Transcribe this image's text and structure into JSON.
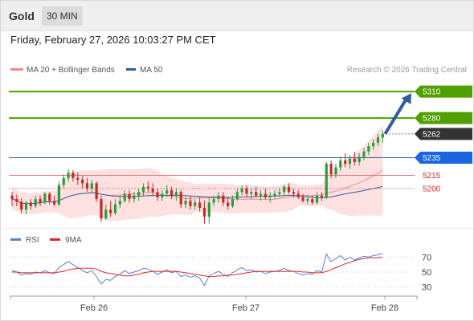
{
  "header": {
    "instrument": "Gold",
    "timeframe": "30 MIN",
    "datetime": "Friday, February 27, 2026 10:03:27 PM CET"
  },
  "legend": {
    "price": [
      {
        "label": "MA 20 + Bollinger Bands",
        "color": "#f08a8a"
      },
      {
        "label": "MA 50",
        "color": "#2d5d9c"
      }
    ],
    "copyright": "Research © 2026 Trading Central",
    "rsi": [
      {
        "label": "RSI",
        "color": "#5b7fd6"
      },
      {
        "label": "9MA",
        "color": "#d82b2b"
      }
    ]
  },
  "colors": {
    "up": "#2a9d3a",
    "down": "#c62828",
    "band_fill": "#fde1e1",
    "ma20": "#f08a8a",
    "ma50": "#2d5d9c",
    "resistance": "#4fa000",
    "pivot": "#1a66e0",
    "current": "#333333",
    "arrow": "#2f5d9e",
    "rsi": "#5b7fd6",
    "rsi_ma": "#d82b2b"
  },
  "chart_data": [
    {
      "type": "candlestick",
      "ylim": [
        5158,
        5322
      ],
      "x_ticks": [
        "Feb 26",
        "Feb 27",
        "Feb 28"
      ],
      "levels": [
        {
          "value": 5310,
          "label": "5310",
          "kind": "resistance"
        },
        {
          "value": 5280,
          "label": "5280",
          "kind": "resistance"
        },
        {
          "value": 5262,
          "label": "5262",
          "kind": "current"
        },
        {
          "value": 5235,
          "label": "5235",
          "kind": "pivot"
        },
        {
          "value": 5215,
          "label": "5215",
          "kind": "support"
        },
        {
          "value": 5200,
          "label": "5200",
          "kind": "support"
        }
      ],
      "target": {
        "from": 5262,
        "to": 5310
      },
      "ohlc": [
        [
          5192,
          5196,
          5180,
          5188
        ],
        [
          5188,
          5193,
          5180,
          5185
        ],
        [
          5185,
          5189,
          5172,
          5176
        ],
        [
          5176,
          5186,
          5171,
          5184
        ],
        [
          5184,
          5188,
          5176,
          5180
        ],
        [
          5180,
          5192,
          5178,
          5188
        ],
        [
          5188,
          5192,
          5180,
          5184
        ],
        [
          5184,
          5196,
          5182,
          5194
        ],
        [
          5194,
          5196,
          5182,
          5186
        ],
        [
          5186,
          5192,
          5180,
          5182
        ],
        [
          5182,
          5208,
          5180,
          5204
        ],
        [
          5204,
          5216,
          5200,
          5212
        ],
        [
          5212,
          5222,
          5208,
          5218
        ],
        [
          5218,
          5221,
          5208,
          5212
        ],
        [
          5212,
          5218,
          5204,
          5210
        ],
        [
          5210,
          5214,
          5200,
          5206
        ],
        [
          5206,
          5212,
          5196,
          5200
        ],
        [
          5200,
          5210,
          5196,
          5206
        ],
        [
          5206,
          5208,
          5185,
          5188
        ],
        [
          5188,
          5192,
          5162,
          5166
        ],
        [
          5166,
          5182,
          5164,
          5176
        ],
        [
          5176,
          5186,
          5168,
          5172
        ],
        [
          5172,
          5188,
          5170,
          5182
        ],
        [
          5182,
          5192,
          5178,
          5186
        ],
        [
          5186,
          5198,
          5184,
          5194
        ],
        [
          5194,
          5198,
          5184,
          5188
        ],
        [
          5188,
          5196,
          5184,
          5192
        ],
        [
          5192,
          5200,
          5186,
          5196
        ],
        [
          5196,
          5206,
          5192,
          5202
        ],
        [
          5202,
          5208,
          5196,
          5200
        ],
        [
          5200,
          5206,
          5192,
          5196
        ],
        [
          5196,
          5200,
          5186,
          5190
        ],
        [
          5190,
          5198,
          5186,
          5194
        ],
        [
          5194,
          5204,
          5190,
          5198
        ],
        [
          5198,
          5202,
          5188,
          5192
        ],
        [
          5192,
          5200,
          5186,
          5196
        ],
        [
          5196,
          5198,
          5178,
          5182
        ],
        [
          5182,
          5190,
          5178,
          5186
        ],
        [
          5186,
          5192,
          5176,
          5180
        ],
        [
          5180,
          5188,
          5176,
          5184
        ],
        [
          5184,
          5190,
          5174,
          5178
        ],
        [
          5178,
          5186,
          5160,
          5168
        ],
        [
          5168,
          5190,
          5160,
          5184
        ],
        [
          5184,
          5192,
          5180,
          5188
        ],
        [
          5188,
          5196,
          5184,
          5192
        ],
        [
          5192,
          5196,
          5180,
          5184
        ],
        [
          5184,
          5190,
          5176,
          5180
        ],
        [
          5180,
          5192,
          5178,
          5188
        ],
        [
          5188,
          5200,
          5186,
          5196
        ],
        [
          5196,
          5204,
          5192,
          5200
        ],
        [
          5200,
          5204,
          5190,
          5194
        ],
        [
          5194,
          5200,
          5188,
          5196
        ],
        [
          5196,
          5202,
          5190,
          5192
        ],
        [
          5192,
          5198,
          5186,
          5194
        ],
        [
          5194,
          5200,
          5188,
          5190
        ],
        [
          5190,
          5196,
          5184,
          5192
        ],
        [
          5192,
          5198,
          5188,
          5194
        ],
        [
          5194,
          5200,
          5190,
          5196
        ],
        [
          5196,
          5204,
          5192,
          5202
        ],
        [
          5202,
          5206,
          5194,
          5196
        ],
        [
          5196,
          5200,
          5190,
          5194
        ],
        [
          5194,
          5198,
          5188,
          5190
        ],
        [
          5190,
          5194,
          5184,
          5186
        ],
        [
          5186,
          5192,
          5182,
          5188
        ],
        [
          5188,
          5192,
          5182,
          5184
        ],
        [
          5184,
          5196,
          5182,
          5192
        ],
        [
          5192,
          5196,
          5186,
          5190
        ],
        [
          5190,
          5230,
          5188,
          5228
        ],
        [
          5228,
          5232,
          5212,
          5216
        ],
        [
          5216,
          5228,
          5212,
          5224
        ],
        [
          5224,
          5236,
          5220,
          5232
        ],
        [
          5232,
          5240,
          5224,
          5228
        ],
        [
          5228,
          5238,
          5222,
          5234
        ],
        [
          5234,
          5242,
          5226,
          5230
        ],
        [
          5230,
          5240,
          5226,
          5236
        ],
        [
          5236,
          5246,
          5232,
          5242
        ],
        [
          5242,
          5252,
          5238,
          5248
        ],
        [
          5248,
          5256,
          5244,
          5252
        ],
        [
          5252,
          5262,
          5248,
          5258
        ],
        [
          5258,
          5266,
          5252,
          5262
        ]
      ]
    },
    {
      "type": "line",
      "name": "RSI",
      "ylim": [
        20,
        80
      ],
      "y_ticks": [
        70,
        50,
        30
      ],
      "series": [
        {
          "name": "RSI",
          "values": [
            52,
            50,
            46,
            48,
            47,
            50,
            49,
            52,
            49,
            48,
            56,
            60,
            64,
            60,
            56,
            52,
            49,
            52,
            44,
            34,
            40,
            39,
            44,
            47,
            52,
            48,
            50,
            52,
            55,
            54,
            51,
            47,
            50,
            53,
            49,
            51,
            44,
            46,
            43,
            45,
            42,
            32,
            45,
            48,
            51,
            47,
            44,
            49,
            53,
            56,
            52,
            53,
            50,
            51,
            48,
            50,
            51,
            52,
            55,
            52,
            51,
            48,
            46,
            48,
            47,
            52,
            50,
            74,
            64,
            68,
            72,
            66,
            70,
            66,
            69,
            71,
            70,
            72,
            73,
            75
          ]
        },
        {
          "name": "9MA",
          "values": [
            50,
            50,
            49,
            49,
            49,
            49,
            49,
            49,
            49,
            49,
            50,
            51,
            53,
            54,
            55,
            55,
            55,
            55,
            54,
            51,
            49,
            48,
            47,
            46,
            45,
            45,
            46,
            47,
            49,
            50,
            51,
            51,
            51,
            51,
            51,
            51,
            50,
            49,
            48,
            47,
            46,
            45,
            44,
            44,
            45,
            45,
            46,
            46,
            47,
            48,
            49,
            50,
            51,
            51,
            51,
            51,
            51,
            51,
            51,
            51,
            51,
            51,
            50,
            50,
            49,
            49,
            49,
            51,
            53,
            56,
            58,
            61,
            63,
            65,
            67,
            68,
            69,
            69,
            69,
            70
          ]
        }
      ]
    }
  ]
}
